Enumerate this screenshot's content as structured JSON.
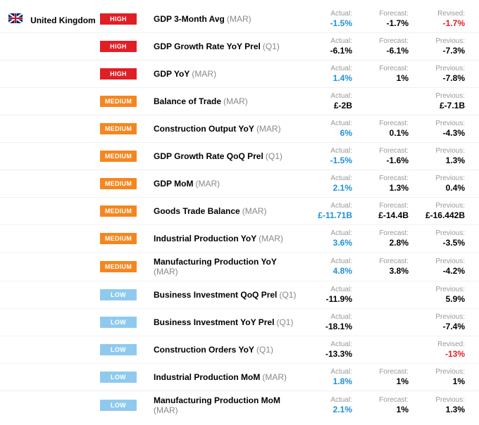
{
  "country": "United Kingdom",
  "impact_colors": {
    "HIGH": "#e01e26",
    "MEDIUM": "#f5861f",
    "LOW": "#8fcaee"
  },
  "value_colors": {
    "blue": "#1e90d8",
    "red": "#e01e26",
    "black": "#000000"
  },
  "column_labels": {
    "actual": "Actual:",
    "forecast": "Forecast:",
    "previous": "Previous:",
    "revised": "Revised:"
  },
  "events": [
    {
      "impact": "HIGH",
      "name": "GDP 3-Month Avg",
      "period": "(MAR)",
      "actual": "-1.5%",
      "actual_color": "blue",
      "col2_label": "Forecast:",
      "col2": "-1.7%",
      "col3_label": "Revised:",
      "col3": "-1.7%",
      "col3_color": "red"
    },
    {
      "impact": "HIGH",
      "name": "GDP Growth Rate YoY Prel",
      "period": "(Q1)",
      "actual": "-6.1%",
      "actual_color": "black",
      "col2_label": "Forecast:",
      "col2": "-6.1%",
      "col3_label": "Previous:",
      "col3": "-7.3%",
      "col3_color": "black"
    },
    {
      "impact": "HIGH",
      "name": "GDP YoY",
      "period": "(MAR)",
      "actual": "1.4%",
      "actual_color": "blue",
      "col2_label": "Forecast:",
      "col2": "1%",
      "col3_label": "Previous:",
      "col3": "-7.8%",
      "col3_color": "black"
    },
    {
      "impact": "MEDIUM",
      "name": "Balance of Trade",
      "period": "(MAR)",
      "actual": "£-2B",
      "actual_color": "black",
      "col2_label": "",
      "col2": "",
      "col3_label": "Previous:",
      "col3": "£-7.1B",
      "col3_color": "black"
    },
    {
      "impact": "MEDIUM",
      "name": "Construction Output YoY",
      "period": "(MAR)",
      "actual": "6%",
      "actual_color": "blue",
      "col2_label": "Forecast:",
      "col2": "0.1%",
      "col3_label": "Previous:",
      "col3": "-4.3%",
      "col3_color": "black"
    },
    {
      "impact": "MEDIUM",
      "name": "GDP Growth Rate QoQ Prel",
      "period": "(Q1)",
      "actual": "-1.5%",
      "actual_color": "blue",
      "col2_label": "Forecast:",
      "col2": "-1.6%",
      "col3_label": "Previous:",
      "col3": "1.3%",
      "col3_color": "black"
    },
    {
      "impact": "MEDIUM",
      "name": "GDP MoM",
      "period": "(MAR)",
      "actual": "2.1%",
      "actual_color": "blue",
      "col2_label": "Forecast:",
      "col2": "1.3%",
      "col3_label": "Previous:",
      "col3": "0.4%",
      "col3_color": "black"
    },
    {
      "impact": "MEDIUM",
      "name": "Goods Trade Balance",
      "period": "(MAR)",
      "actual": "£-11.71B",
      "actual_color": "blue",
      "col2_label": "Forecast:",
      "col2": "£-14.4B",
      "col3_label": "Previous:",
      "col3": "£-16.442B",
      "col3_color": "black"
    },
    {
      "impact": "MEDIUM",
      "name": "Industrial Production YoY",
      "period": "(MAR)",
      "actual": "3.6%",
      "actual_color": "blue",
      "col2_label": "Forecast:",
      "col2": "2.8%",
      "col3_label": "Previous:",
      "col3": "-3.5%",
      "col3_color": "black"
    },
    {
      "impact": "MEDIUM",
      "name": "Manufacturing Production YoY",
      "period": "(MAR)",
      "actual": "4.8%",
      "actual_color": "blue",
      "col2_label": "Forecast:",
      "col2": "3.8%",
      "col3_label": "Previous:",
      "col3": "-4.2%",
      "col3_color": "black"
    },
    {
      "impact": "LOW",
      "name": "Business Investment QoQ Prel",
      "period": "(Q1)",
      "actual": "-11.9%",
      "actual_color": "black",
      "col2_label": "",
      "col2": "",
      "col3_label": "Previous:",
      "col3": "5.9%",
      "col3_color": "black"
    },
    {
      "impact": "LOW",
      "name": "Business Investment YoY Prel",
      "period": "(Q1)",
      "actual": "-18.1%",
      "actual_color": "black",
      "col2_label": "",
      "col2": "",
      "col3_label": "Previous:",
      "col3": "-7.4%",
      "col3_color": "black"
    },
    {
      "impact": "LOW",
      "name": "Construction Orders YoY",
      "period": "(Q1)",
      "actual": "-13.3%",
      "actual_color": "black",
      "col2_label": "",
      "col2": "",
      "col3_label": "Revised:",
      "col3": "-13%",
      "col3_color": "red"
    },
    {
      "impact": "LOW",
      "name": "Industrial Production MoM",
      "period": "(MAR)",
      "actual": "1.8%",
      "actual_color": "blue",
      "col2_label": "Forecast:",
      "col2": "1%",
      "col3_label": "Previous:",
      "col3": "1%",
      "col3_color": "black"
    },
    {
      "impact": "LOW",
      "name": "Manufacturing Production MoM",
      "period": "(MAR)",
      "actual": "2.1%",
      "actual_color": "blue",
      "col2_label": "Forecast:",
      "col2": "1%",
      "col3_label": "Previous:",
      "col3": "1.3%",
      "col3_color": "black"
    }
  ]
}
